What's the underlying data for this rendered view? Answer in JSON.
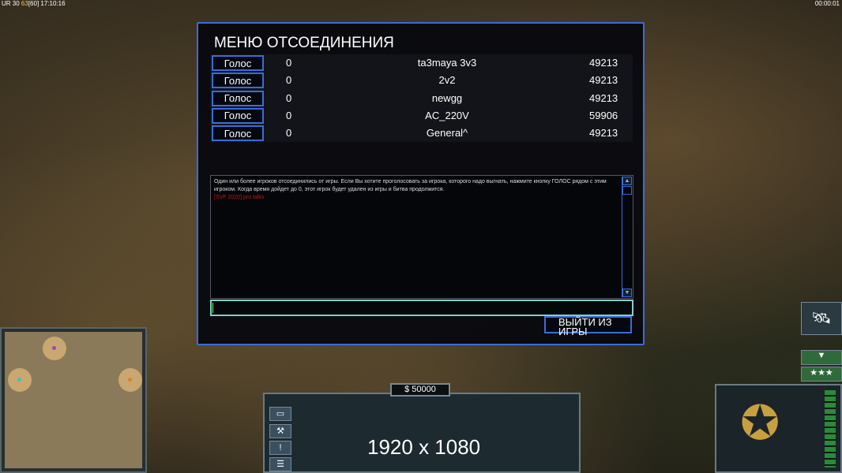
{
  "hud": {
    "top_left_prefix": "UR 30",
    "top_left_fps": "63",
    "top_left_bracket": "[60]",
    "top_left_time": "17:10:16",
    "top_right_time": "00:00:01"
  },
  "dialog": {
    "title": "МЕНЮ ОТСОЕДИНЕНИЯ",
    "players": [
      {
        "vote_label": "Голос",
        "count": "0",
        "name": "ta3maya 3v3",
        "port": "49213"
      },
      {
        "vote_label": "Голос",
        "count": "0",
        "name": "2v2",
        "port": "49213"
      },
      {
        "vote_label": "Голос",
        "count": "0",
        "name": "newgg",
        "port": "49213"
      },
      {
        "vote_label": "Голос",
        "count": "0",
        "name": "AC_220V",
        "port": "59906"
      },
      {
        "vote_label": "Голос",
        "count": "0",
        "name": "General^",
        "port": "49213"
      }
    ],
    "message": "Один или более игроков отсоединились от игры. Если Вы хотите проголосовать за игрока, которого надо выгнать, нажмите кнопку ГОЛОС рядом с этим игроком. Когда время дойдет до 0, этот игрок будет удален из игры и битва продолжится.",
    "chat_line": "[SVF 2020] pro talks",
    "chat_input": "",
    "exit_label": "ВЫЙТИ ИЗ ИГРЫ"
  },
  "command_bar": {
    "money": "$ 50000",
    "resolution_overlay": "1920 x 1080"
  },
  "colors": {
    "dialog_border": "#3a6cd8",
    "chat_red": "#c01818",
    "fps": "#ffd040"
  }
}
